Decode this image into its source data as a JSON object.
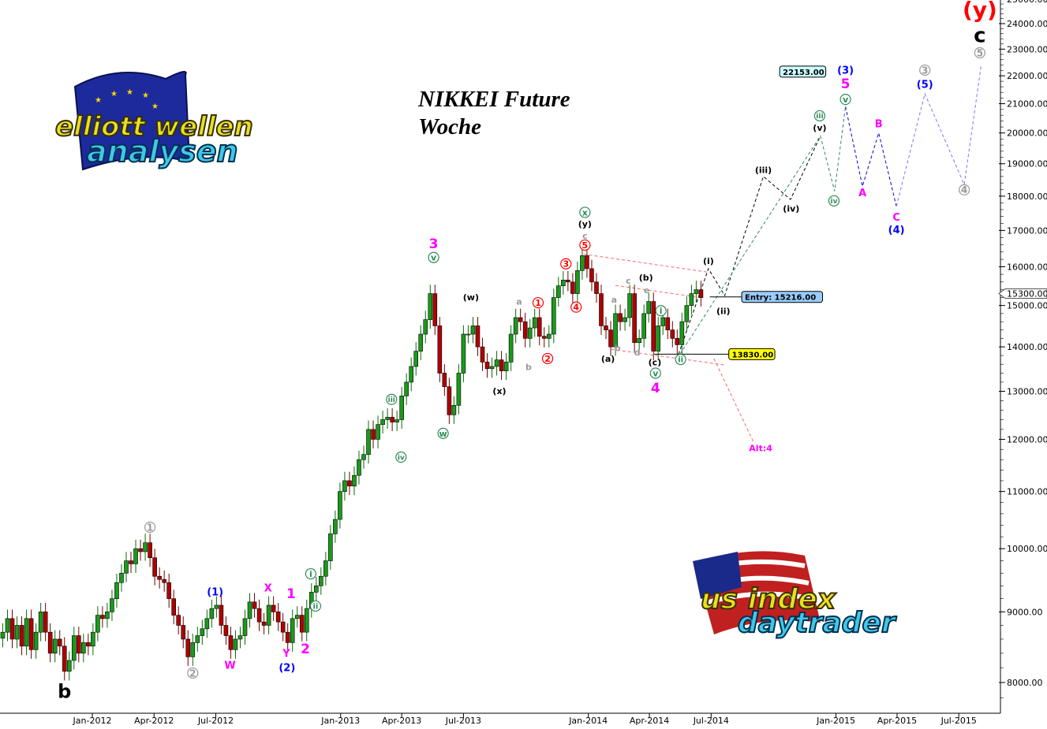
{
  "chart_data": {
    "type": "candlestick",
    "title": "NIKKEI Future",
    "subtitle": "Woche",
    "y_scale": "log",
    "ylim": [
      7700,
      25000
    ],
    "yticks": [
      8000,
      9000,
      10000,
      11000,
      12000,
      13000,
      14000,
      15000,
      16000,
      17000,
      18000,
      19000,
      20000,
      21000,
      22000,
      23000,
      24000,
      25000
    ],
    "xticks": [
      {
        "label": "Jan-2012",
        "date": "2012-01-01"
      },
      {
        "label": "Apr-2012",
        "date": "2012-04-01"
      },
      {
        "label": "Jul-2012",
        "date": "2012-07-01"
      },
      {
        "label": "Jan-2013",
        "date": "2013-01-01"
      },
      {
        "label": "Apr-2013",
        "date": "2013-04-01"
      },
      {
        "label": "Jul-2013",
        "date": "2013-07-01"
      },
      {
        "label": "Jan-2014",
        "date": "2014-01-01"
      },
      {
        "label": "Apr-2014",
        "date": "2014-04-01"
      },
      {
        "label": "Jul-2014",
        "date": "2014-07-01"
      },
      {
        "label": "Jan-2015",
        "date": "2015-01-01"
      },
      {
        "label": "Apr-2015",
        "date": "2015-04-01"
      },
      {
        "label": "Jul-2015",
        "date": "2015-07-01"
      }
    ],
    "grid": false,
    "colors": {
      "up": "#1a9a1a",
      "down": "#b00000",
      "axis": "#000000"
    },
    "candles": {
      "interval": "weekly",
      "first_date": "2011-08-22",
      "closes": [
        8700,
        8900,
        8600,
        8800,
        8500,
        8900,
        8450,
        8700,
        9000,
        8700,
        8400,
        8600,
        8500,
        8150,
        8300,
        8650,
        8400,
        8550,
        8500,
        8700,
        8950,
        8900,
        9000,
        9200,
        9450,
        9600,
        9800,
        9750,
        10000,
        9950,
        10100,
        9850,
        9550,
        9500,
        9450,
        9200,
        8950,
        8800,
        8600,
        8350,
        8550,
        8650,
        8750,
        8900,
        9050,
        9100,
        8800,
        8650,
        8450,
        8600,
        8650,
        8900,
        9150,
        9050,
        8850,
        8800,
        9100,
        9000,
        8850,
        8700,
        8550,
        8900,
        8950,
        8700,
        9050,
        9300,
        9400,
        9550,
        9800,
        10250,
        10500,
        11000,
        11200,
        11100,
        11300,
        11600,
        11700,
        12200,
        12000,
        12300,
        12400,
        12450,
        12350,
        12400,
        12900,
        13200,
        13550,
        13900,
        14300,
        14650,
        15300,
        14500,
        13400,
        13100,
        12500,
        12700,
        13400,
        14300,
        14300,
        14500,
        14000,
        13650,
        13500,
        13550,
        13700,
        13450,
        13650,
        14300,
        14700,
        14600,
        14200,
        14450,
        14700,
        14250,
        14200,
        14300,
        15200,
        15500,
        15650,
        15600,
        15300,
        15900,
        16300,
        15950,
        15600,
        15300,
        14500,
        14400,
        14000,
        14800,
        14600,
        14700,
        15300,
        14100,
        14200,
        14800,
        15100,
        13900,
        14500,
        14700,
        14400,
        14200,
        14050,
        14600,
        15000,
        15300,
        15400,
        15200
      ]
    },
    "current_price": {
      "label": "15300.00",
      "value": 15300
    },
    "price_tags": [
      {
        "name": "target-tag",
        "label": "22153.00",
        "value": 22153,
        "from": "2014-12-10",
        "box_date": "2014-10-10",
        "color": "#ccffff"
      },
      {
        "name": "entry-tag",
        "label": "Entry: 15216.00",
        "value": 15216,
        "from": "2014-06-29",
        "box_date": "2014-08-15",
        "color": "#99ccff"
      },
      {
        "name": "stop-tag",
        "label": "13830.00",
        "value": 13830,
        "from": "2014-04-08",
        "box_date": "2014-07-27",
        "color": "#ffff00"
      }
    ],
    "projections": [
      {
        "name": "projection-black",
        "color": "#000000",
        "points": [
          [
            "2014-05-14",
            13830
          ],
          [
            "2014-06-27",
            15950
          ],
          [
            "2014-07-21",
            15250
          ],
          [
            "2014-09-16",
            18600
          ],
          [
            "2014-10-26",
            17900
          ],
          [
            "2014-12-09",
            19900
          ]
        ]
      },
      {
        "name": "projection-green",
        "color": "#2e8b57",
        "points": [
          [
            "2014-05-16",
            13830
          ],
          [
            "2014-12-09",
            19900
          ],
          [
            "2014-12-30",
            18150
          ],
          [
            "2015-01-15",
            20900
          ]
        ]
      },
      {
        "name": "projection-blue",
        "color": "#0000dd",
        "points": [
          [
            "2015-01-15",
            20900
          ],
          [
            "2015-02-09",
            18300
          ],
          [
            "2015-03-05",
            20000
          ],
          [
            "2015-03-31",
            17700
          ]
        ]
      },
      {
        "name": "projection-lightblue",
        "color": "#7777ff",
        "points": [
          [
            "2015-03-31",
            17700
          ],
          [
            "2015-05-12",
            21350
          ],
          [
            "2015-07-09",
            18350
          ],
          [
            "2015-08-03",
            22400
          ]
        ]
      },
      {
        "name": "channel-upper",
        "color": "#ff6666",
        "points": [
          [
            "2013-12-25",
            16340
          ],
          [
            "2014-06-29",
            15850
          ]
        ]
      },
      {
        "name": "channel-middle",
        "color": "#ff6666",
        "points": [
          [
            "2014-02-10",
            15510
          ],
          [
            "2014-06-18",
            15195
          ]
        ]
      },
      {
        "name": "channel-lower",
        "color": "#ff6666",
        "points": [
          [
            "2014-02-04",
            13944
          ],
          [
            "2014-07-23",
            13580
          ]
        ]
      },
      {
        "name": "alt4-path",
        "color": "#ff6666",
        "points": [
          [
            "2014-07-05",
            13730
          ],
          [
            "2014-09-01",
            11960
          ]
        ]
      }
    ],
    "labels": [
      {
        "t": "b",
        "d": "2011-11-21",
        "p": 7885,
        "c": "#000000",
        "s": 24
      },
      {
        "t": "1",
        "d": "2012-03-26",
        "p": 10364,
        "c": "#999999",
        "s": 12,
        "circle": true
      },
      {
        "t": "2",
        "d": "2012-05-28",
        "p": 8127,
        "c": "#999999",
        "s": 12,
        "circle": true
      },
      {
        "t": "(1)",
        "d": "2012-06-30",
        "p": 9305,
        "c": "#0000ff",
        "s": 13
      },
      {
        "t": "W",
        "d": "2012-07-22",
        "p": 8235,
        "c": "#ff00ff",
        "s": 13
      },
      {
        "t": "X",
        "d": "2012-09-16",
        "p": 9366,
        "c": "#ff00ff",
        "s": 13
      },
      {
        "t": "1",
        "d": "2012-10-20",
        "p": 9282,
        "c": "#ff00ff",
        "s": 17
      },
      {
        "t": "Y",
        "d": "2012-10-13",
        "p": 8399,
        "c": "#ff00ff",
        "s": 13
      },
      {
        "t": "(2)",
        "d": "2012-10-14",
        "p": 8202,
        "c": "#0000ff",
        "s": 13
      },
      {
        "t": "2",
        "d": "2012-11-10",
        "p": 8465,
        "c": "#ff00ff",
        "s": 17
      },
      {
        "t": "i",
        "d": "2012-11-18",
        "p": 9590,
        "c": "#2e8b57",
        "s": 11,
        "circle": true
      },
      {
        "t": "ii",
        "d": "2012-11-25",
        "p": 9088,
        "c": "#2e8b57",
        "s": 10,
        "circle": true
      },
      {
        "t": "iii",
        "d": "2013-03-17",
        "p": 12826,
        "c": "#2e8b57",
        "s": 9,
        "circle": true
      },
      {
        "t": "iv",
        "d": "2013-03-31",
        "p": 11649,
        "c": "#2e8b57",
        "s": 9,
        "circle": true
      },
      {
        "t": "3",
        "d": "2013-05-18",
        "p": 16640,
        "c": "#ff00ff",
        "s": 17
      },
      {
        "t": "v",
        "d": "2013-05-18",
        "p": 16250,
        "c": "#2e8b57",
        "s": 11,
        "circle": true
      },
      {
        "t": "w",
        "d": "2013-06-01",
        "p": 12120,
        "c": "#2e8b57",
        "s": 11,
        "circle": true
      },
      {
        "t": "(w)",
        "d": "2013-07-12",
        "p": 15210,
        "c": "#000000",
        "s": 11
      },
      {
        "t": "(x)",
        "d": "2013-08-23",
        "p": 13010,
        "c": "#000000",
        "s": 11
      },
      {
        "t": "a",
        "d": "2013-09-21",
        "p": 15100,
        "c": "#999999",
        "s": 11
      },
      {
        "t": "b",
        "d": "2013-10-05",
        "p": 13540,
        "c": "#999999",
        "s": 11
      },
      {
        "t": "1",
        "d": "2013-10-19",
        "p": 15070,
        "c": "#ff0000",
        "s": 11,
        "circle": true
      },
      {
        "t": "2",
        "d": "2013-11-02",
        "p": 13730,
        "c": "#ff0000",
        "s": 11,
        "circle": true
      },
      {
        "t": "3",
        "d": "2013-11-29",
        "p": 16080,
        "c": "#ff0000",
        "s": 11,
        "circle": true
      },
      {
        "t": "4",
        "d": "2013-12-14",
        "p": 14960,
        "c": "#ff0000",
        "s": 11,
        "circle": true
      },
      {
        "t": "5",
        "d": "2013-12-27",
        "p": 16590,
        "c": "#ff0000",
        "s": 11,
        "circle": true
      },
      {
        "t": "c",
        "d": "2013-12-27",
        "p": 16850,
        "c": "#999999",
        "s": 11
      },
      {
        "t": "(y)",
        "d": "2013-12-27",
        "p": 17190,
        "c": "#000000",
        "s": 11
      },
      {
        "t": "x",
        "d": "2013-12-27",
        "p": 17520,
        "c": "#2e8b57",
        "s": 11,
        "circle": true
      },
      {
        "t": "a",
        "d": "2014-02-08",
        "p": 15150,
        "c": "#999999",
        "s": 11
      },
      {
        "t": "b",
        "d": "2014-02-13",
        "p": 13970,
        "c": "#999999",
        "s": 11
      },
      {
        "t": "c",
        "d": "2014-03-01",
        "p": 15640,
        "c": "#999999",
        "s": 11
      },
      {
        "t": "(b)",
        "d": "2014-03-27",
        "p": 15720,
        "c": "#000000",
        "s": 11
      },
      {
        "t": "e",
        "d": "2014-03-28",
        "p": 15390,
        "c": "#999999",
        "s": 11
      },
      {
        "t": "d",
        "d": "2014-03-14",
        "p": 13870,
        "c": "#999999",
        "s": 11
      },
      {
        "t": "(a)",
        "d": "2014-01-30",
        "p": 13730,
        "c": "#000000",
        "s": 11
      },
      {
        "t": "i",
        "d": "2014-04-18",
        "p": 14870,
        "c": "#2e8b57",
        "s": 11,
        "circle": true
      },
      {
        "t": "(c)",
        "d": "2014-04-09",
        "p": 13650,
        "c": "#000000",
        "s": 11
      },
      {
        "t": "v",
        "d": "2014-04-10",
        "p": 13400,
        "c": "#2e8b57",
        "s": 11,
        "circle": true
      },
      {
        "t": "4",
        "d": "2014-04-10",
        "p": 13080,
        "c": "#ff00ff",
        "s": 17
      },
      {
        "t": "ii",
        "d": "2014-05-17",
        "p": 13710,
        "c": "#2e8b57",
        "s": 10,
        "circle": true
      },
      {
        "t": "(i)",
        "d": "2014-06-27",
        "p": 16160,
        "c": "#000000",
        "s": 11
      },
      {
        "t": "(ii)",
        "d": "2014-07-19",
        "p": 14860,
        "c": "#000000",
        "s": 11
      },
      {
        "t": "Alt:4",
        "d": "2014-09-12",
        "p": 11830,
        "c": "#ff00ff",
        "s": 11
      },
      {
        "t": "(iii)",
        "d": "2014-09-16",
        "p": 18800,
        "c": "#000000",
        "s": 11
      },
      {
        "t": "(iv)",
        "d": "2014-10-27",
        "p": 17630,
        "c": "#000000",
        "s": 11
      },
      {
        "t": "(v)",
        "d": "2014-12-08",
        "p": 20180,
        "c": "#000000",
        "s": 11
      },
      {
        "t": "iii",
        "d": "2014-12-08",
        "p": 20580,
        "c": "#2e8b57",
        "s": 9,
        "circle": true
      },
      {
        "t": "iv",
        "d": "2014-12-29",
        "p": 17860,
        "c": "#2e8b57",
        "s": 9,
        "circle": true
      },
      {
        "t": "v",
        "d": "2015-01-15",
        "p": 21150,
        "c": "#2e8b57",
        "s": 11,
        "circle": true
      },
      {
        "t": "5",
        "d": "2015-01-15",
        "p": 21720,
        "c": "#ff00ff",
        "s": 17
      },
      {
        "t": "(3)",
        "d": "2015-01-15",
        "p": 22220,
        "c": "#0000ff",
        "s": 13
      },
      {
        "t": "A",
        "d": "2015-02-09",
        "p": 18110,
        "c": "#ff00ff",
        "s": 13
      },
      {
        "t": "B",
        "d": "2015-03-05",
        "p": 20310,
        "c": "#ff00ff",
        "s": 13
      },
      {
        "t": "C",
        "d": "2015-03-31",
        "p": 17380,
        "c": "#ff00ff",
        "s": 13
      },
      {
        "t": "(4)",
        "d": "2015-03-31",
        "p": 17020,
        "c": "#0000ff",
        "s": 13
      },
      {
        "t": "(5)",
        "d": "2015-05-12",
        "p": 21700,
        "c": "#0000ff",
        "s": 13
      },
      {
        "t": "3",
        "d": "2015-05-12",
        "p": 22210,
        "c": "#999999",
        "s": 12,
        "circle": true
      },
      {
        "t": "4",
        "d": "2015-07-09",
        "p": 18190,
        "c": "#999999",
        "s": 12,
        "circle": true
      },
      {
        "t": "5",
        "d": "2015-08-01",
        "p": 22860,
        "c": "#999999",
        "s": 12,
        "circle": true
      },
      {
        "t": "c",
        "d": "2015-08-01",
        "p": 23560,
        "c": "#000000",
        "s": 26
      },
      {
        "t": "(y)",
        "d": "2015-08-01",
        "p": 24570,
        "c": "#ff0000",
        "s": 28
      }
    ]
  },
  "logos": {
    "top_left": {
      "line1": "elliott wellen",
      "line2": "analysen"
    },
    "bottom_right": {
      "line1": "us index",
      "line2": "daytrader"
    }
  }
}
